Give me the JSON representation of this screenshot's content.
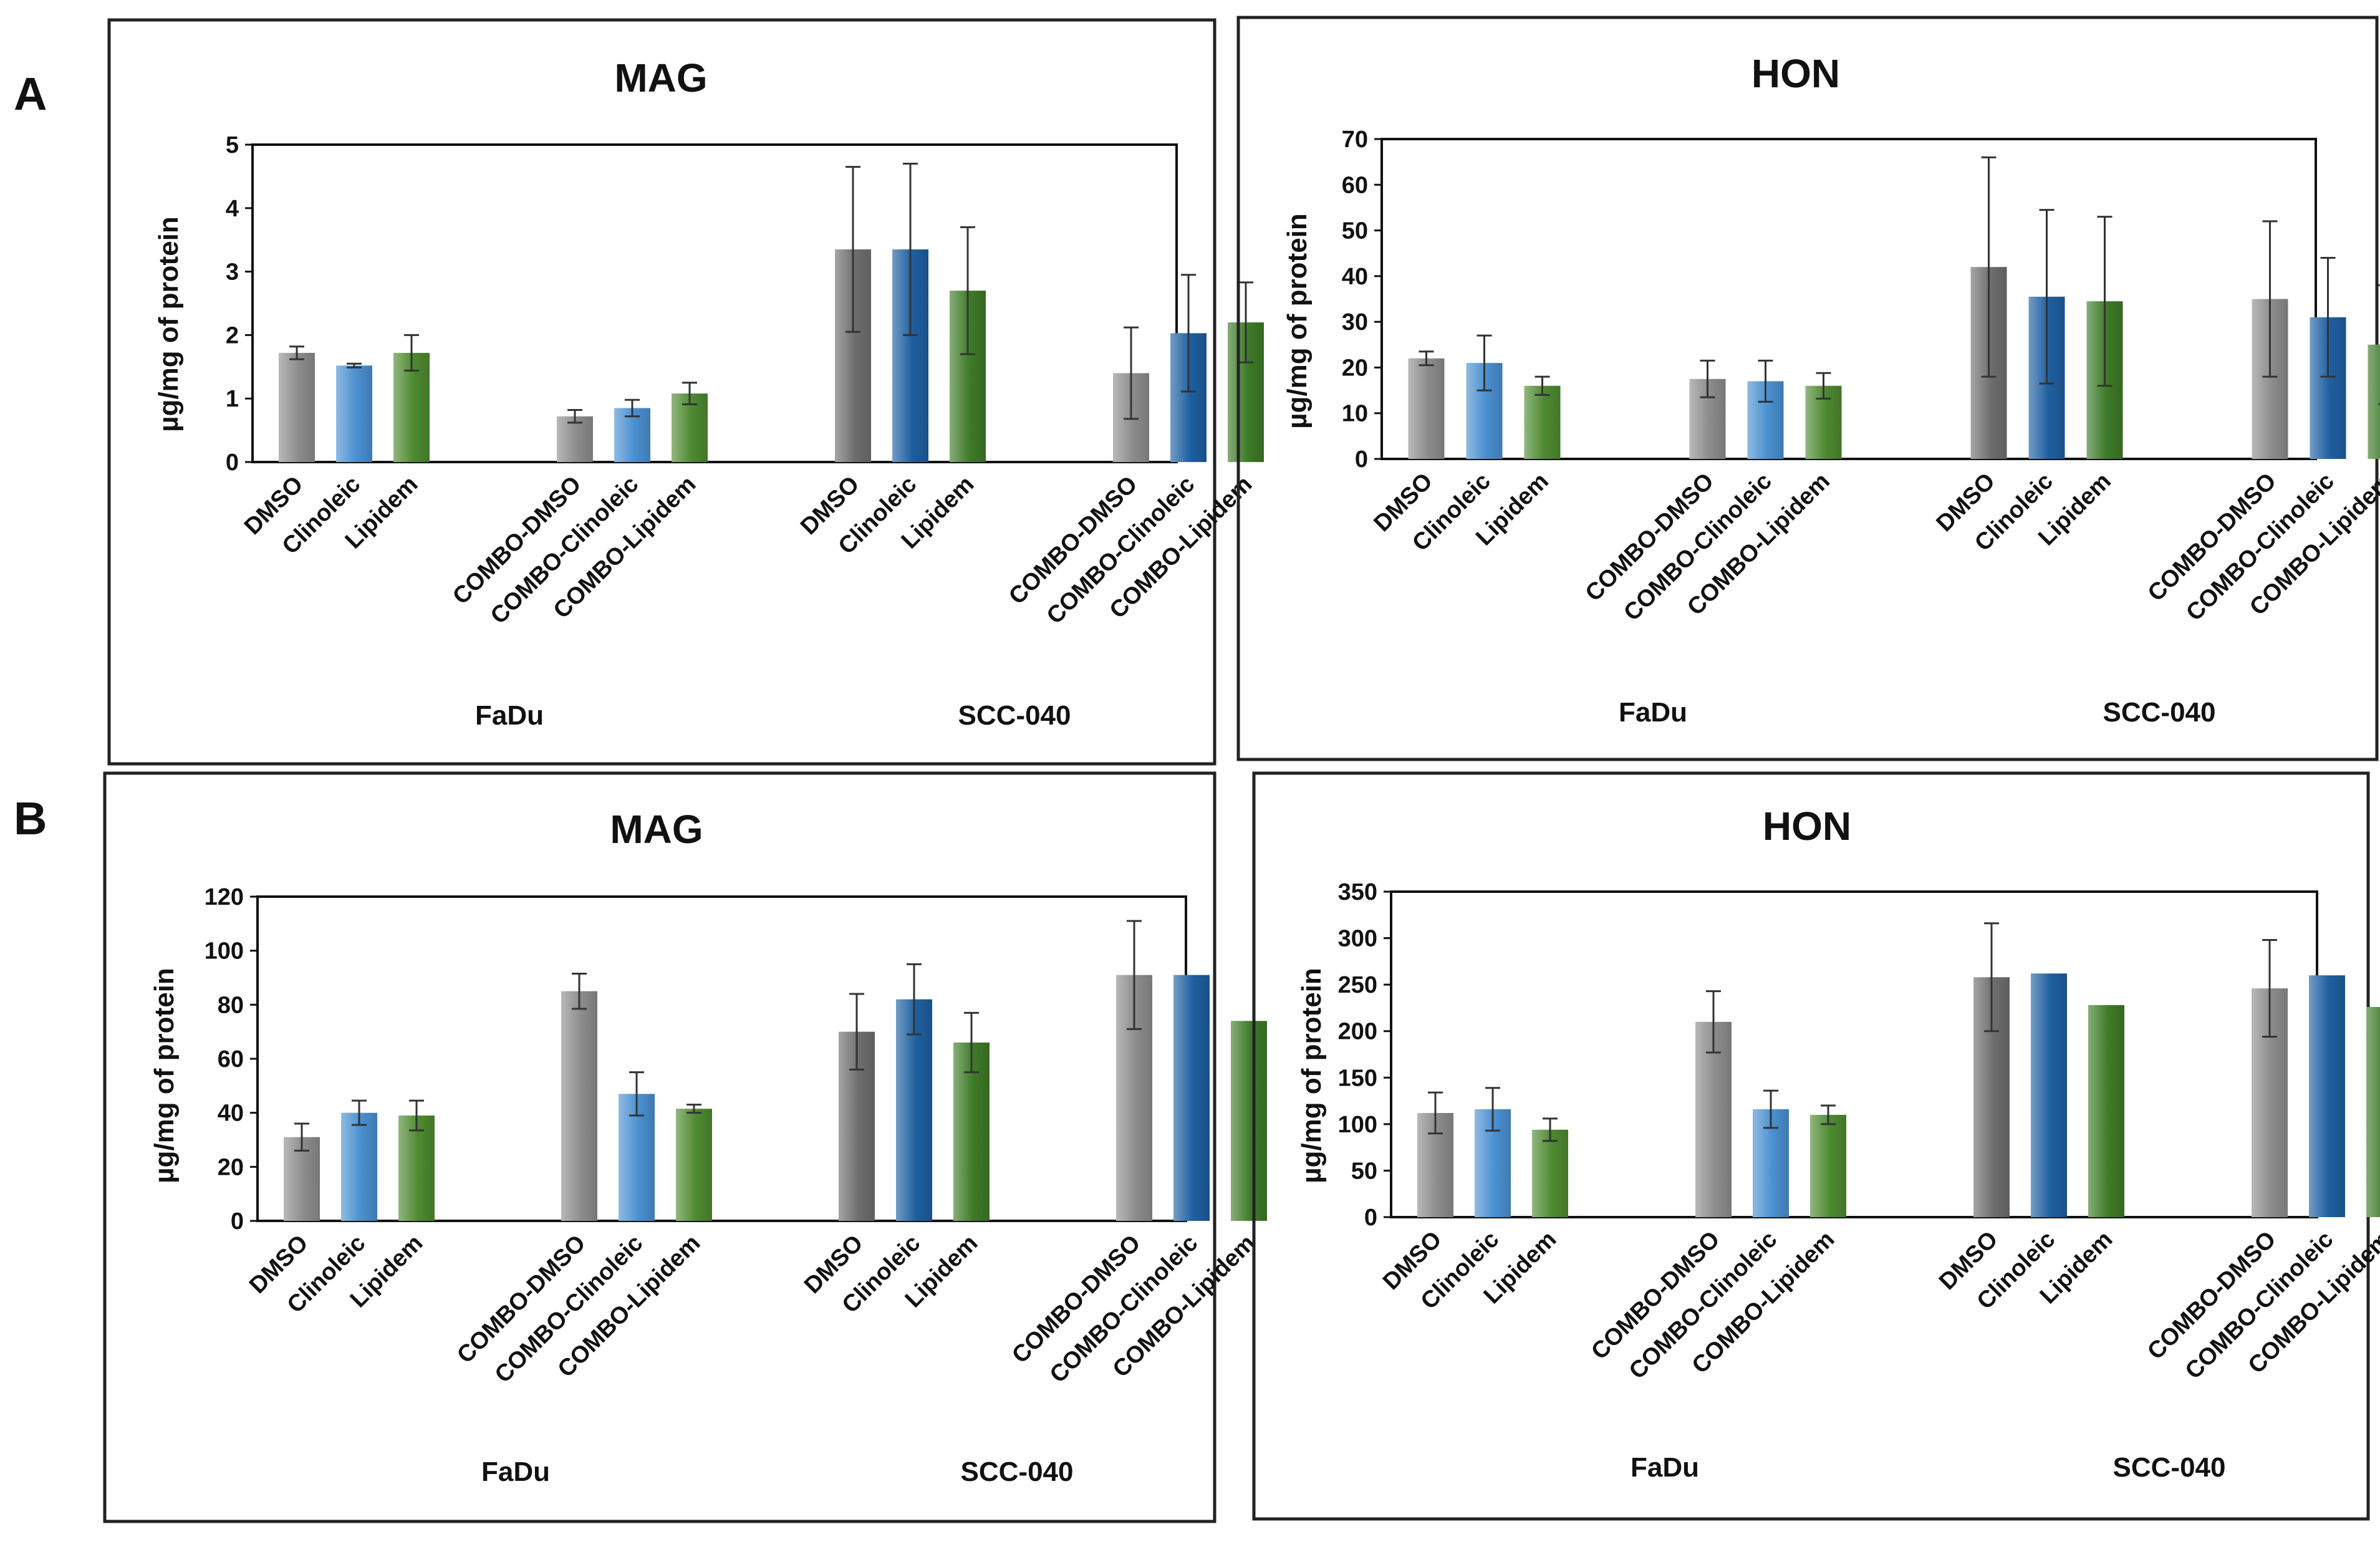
{
  "panel_labels": [
    "A",
    "B"
  ],
  "chart_data": [
    {
      "type": "bar",
      "panel": "A",
      "title": "MAG",
      "ylabel": "µg/mg of protein",
      "ylim": [
        0,
        5
      ],
      "yticks": [
        0,
        1,
        2,
        3,
        4,
        5
      ],
      "categories": [
        "DMSO",
        "Clinoleic",
        "Lipidem",
        "COMBO-DMSO",
        "COMBO-Clinoleic",
        "COMBO-Lipidem",
        "DMSO",
        "Clinoleic",
        "Lipidem",
        "COMBO-DMSO",
        "COMBO-Clinoleic",
        "COMBO-Lipidem"
      ],
      "groups": [
        "FaDu",
        "SCC-040"
      ],
      "values": [
        1.72,
        1.52,
        1.72,
        0.72,
        0.85,
        1.08,
        3.35,
        3.35,
        2.7,
        1.4,
        2.03,
        2.2
      ],
      "errors": [
        0.1,
        0.03,
        0.28,
        0.1,
        0.13,
        0.17,
        1.3,
        1.35,
        1.0,
        0.72,
        0.92,
        0.63
      ],
      "colors": [
        "#8c8c8c",
        "#4a90d0",
        "#4e8a30",
        "#8c8c8c",
        "#4a90d0",
        "#4e8a30",
        "#6e6e6e",
        "#1e5fa0",
        "#3e7a28",
        "#8c8c8c",
        "#1e5fa0",
        "#3e7a28"
      ]
    },
    {
      "type": "bar",
      "panel": "A",
      "title": "HON",
      "ylabel": "µg/mg of protein",
      "ylim": [
        0,
        70
      ],
      "yticks": [
        0,
        10,
        20,
        30,
        40,
        50,
        60,
        70
      ],
      "categories": [
        "DMSO",
        "Clinoleic",
        "Lipidem",
        "COMBO-DMSO",
        "COMBO-Clinoleic",
        "COMBO-Lipidem",
        "DMSO",
        "Clinoleic",
        "Lipidem",
        "COMBO-DMSO",
        "COMBO-Clinoleic",
        "COMBO-Lipidem"
      ],
      "groups": [
        "FaDu",
        "SCC-040"
      ],
      "values": [
        22,
        21,
        16,
        17.5,
        17,
        16,
        42,
        35.5,
        34.5,
        35,
        31,
        25
      ],
      "errors": [
        1.5,
        6,
        2,
        4,
        4.5,
        2.8,
        24,
        19,
        18.5,
        17,
        13,
        13
      ],
      "colors": [
        "#8c8c8c",
        "#4a90d0",
        "#4e8a30",
        "#8c8c8c",
        "#4a90d0",
        "#4e8a30",
        "#6e6e6e",
        "#1e5fa0",
        "#3e7a28",
        "#8c8c8c",
        "#1e5fa0",
        "#3e7a28"
      ]
    },
    {
      "type": "bar",
      "panel": "B",
      "title": "MAG",
      "ylabel": "µg/mg of protein",
      "ylim": [
        0,
        120
      ],
      "yticks": [
        0,
        20,
        40,
        60,
        80,
        100,
        120
      ],
      "categories": [
        "DMSO",
        "Clinoleic",
        "Lipidem",
        "COMBO-DMSO",
        "COMBO-Clinoleic",
        "COMBO-Lipidem",
        "DMSO",
        "Clinoleic",
        "Lipidem",
        "COMBO-DMSO",
        "COMBO-Clinoleic",
        "COMBO-Lipidem"
      ],
      "groups": [
        "FaDu",
        "SCC-040"
      ],
      "values": [
        31,
        40,
        39,
        85,
        47,
        41.5,
        70,
        82,
        66,
        91,
        91,
        74
      ],
      "errors": [
        5,
        4.5,
        5.5,
        6.5,
        8,
        1.5,
        14,
        13,
        11,
        20,
        0,
        0
      ],
      "colors": [
        "#8c8c8c",
        "#4a90d0",
        "#4e8a30",
        "#8c8c8c",
        "#4a90d0",
        "#4e8a30",
        "#6e6e6e",
        "#1e5fa0",
        "#3e7a28",
        "#8c8c8c",
        "#1e5fa0",
        "#3e7a28"
      ]
    },
    {
      "type": "bar",
      "panel": "B",
      "title": "HON",
      "ylabel": "µg/mg of protein",
      "ylim": [
        0,
        350
      ],
      "yticks": [
        0,
        50,
        100,
        150,
        200,
        250,
        300,
        350
      ],
      "categories": [
        "DMSO",
        "Clinoleic",
        "Lipidem",
        "COMBO-DMSO",
        "COMBO-Clinoleic",
        "COMBO-Lipidem",
        "DMSO",
        "Clinoleic",
        "Lipidem",
        "COMBO-DMSO",
        "COMBO-Clinoleic",
        "COMBO-Lipidem"
      ],
      "groups": [
        "FaDu",
        "SCC-040"
      ],
      "values": [
        112,
        116,
        94,
        210,
        116,
        110,
        258,
        262,
        228,
        246,
        260,
        226
      ],
      "errors": [
        22,
        23,
        12,
        33,
        20,
        10,
        58,
        0,
        0,
        52,
        0,
        0
      ],
      "colors": [
        "#8c8c8c",
        "#4a90d0",
        "#4e8a30",
        "#8c8c8c",
        "#4a90d0",
        "#4e8a30",
        "#6e6e6e",
        "#1e5fa0",
        "#3e7a28",
        "#8c8c8c",
        "#1e5fa0",
        "#3e7a28"
      ]
    }
  ]
}
